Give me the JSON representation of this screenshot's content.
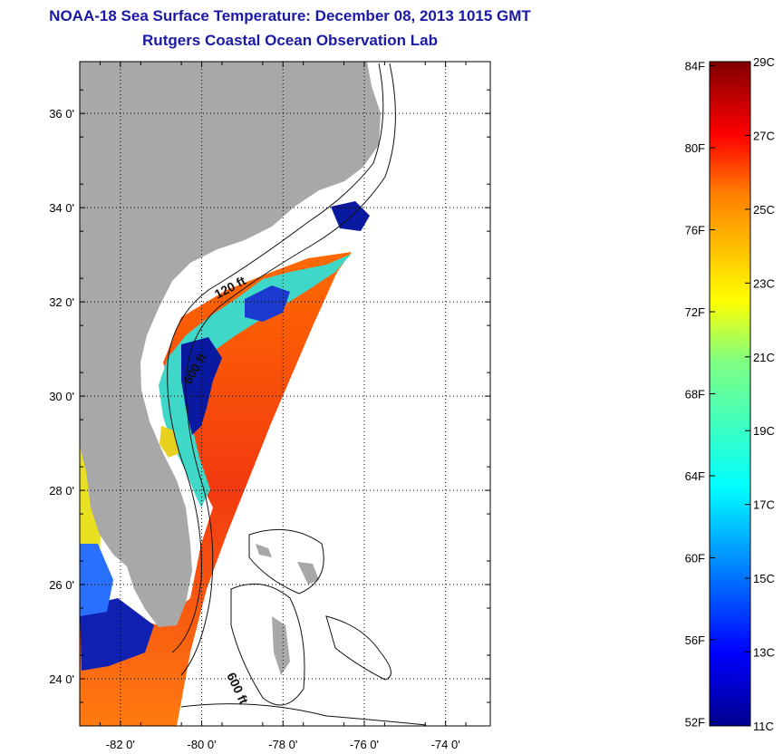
{
  "title": "NOAA-18 Sea Surface Temperature:  December 08, 2013 1015 GMT",
  "subtitle": "Rutgers Coastal Ocean Observation Lab",
  "map": {
    "lon_range": [
      -83.0,
      -72.9
    ],
    "lat_range": [
      23.0,
      37.1
    ],
    "lon_ticks": [
      {
        "value": -82,
        "label": "-82 0'"
      },
      {
        "value": -80,
        "label": "-80 0'"
      },
      {
        "value": -78,
        "label": "-78 0'"
      },
      {
        "value": -76,
        "label": "-76 0'"
      },
      {
        "value": -74,
        "label": "-74 0'"
      }
    ],
    "lat_ticks": [
      {
        "value": 36,
        "label": "36 0'"
      },
      {
        "value": 34,
        "label": "34 0'"
      },
      {
        "value": 32,
        "label": "32 0'"
      },
      {
        "value": 30,
        "label": "30 0'"
      },
      {
        "value": 28,
        "label": "28 0'"
      },
      {
        "value": 26,
        "label": "26 0'"
      },
      {
        "value": 24,
        "label": "24 0'"
      }
    ],
    "isobath_labels": [
      "120 ft",
      "600 ft",
      "600 ft"
    ],
    "land_color": "#a8a8a8",
    "grid": "dotted"
  },
  "colorbar": {
    "min_c": 11,
    "max_c": 29,
    "celsius_labels": [
      "29C",
      "27C",
      "25C",
      "23C",
      "21C",
      "19C",
      "17C",
      "15C",
      "13C",
      "11C"
    ],
    "fahrenheit_labels": [
      "84F",
      "80F",
      "76F",
      "72F",
      "68F",
      "64F",
      "60F",
      "56F",
      "52F"
    ],
    "colormap": [
      "#00008f",
      "#0000ff",
      "#0080ff",
      "#00ffff",
      "#80ff80",
      "#ffff00",
      "#ff8000",
      "#ff0000",
      "#800000"
    ]
  }
}
